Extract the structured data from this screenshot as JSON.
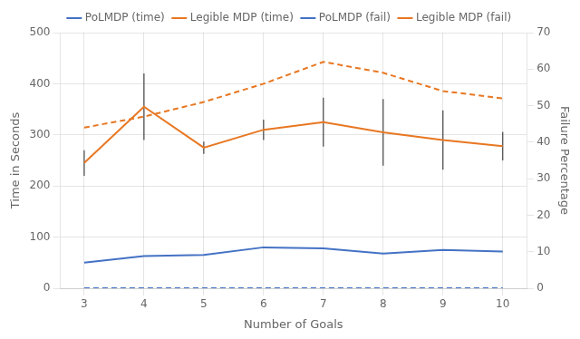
{
  "chart_data": {
    "type": "line",
    "xlabel": "Number of Goals",
    "ylabel": "Time in Seconds",
    "y2label": "Failure Percentage",
    "x": [
      3,
      4,
      5,
      6,
      7,
      8,
      9,
      10
    ],
    "xlim": [
      2.6,
      10.4
    ],
    "xticks": [
      3,
      4,
      5,
      6,
      7,
      8,
      9,
      10
    ],
    "ylim": [
      0,
      500
    ],
    "yticks": [
      0,
      100,
      200,
      300,
      400,
      500
    ],
    "y2lim": [
      0,
      70
    ],
    "y2ticks": [
      0,
      10,
      20,
      30,
      40,
      50,
      60,
      70
    ],
    "grid": true,
    "legend": "top",
    "series": [
      {
        "name": "PoLMDP (time)",
        "color": "#4472C4",
        "line_style": "solid",
        "values": [
          50,
          63,
          65,
          80,
          78,
          68,
          75,
          72
        ]
      },
      {
        "name": "Legible MDP (time)",
        "color": "#E87722",
        "line_style": "solid",
        "values": [
          245,
          355,
          275,
          310,
          325,
          305,
          290,
          278
        ],
        "error_low": [
          25,
          65,
          12,
          20,
          48,
          65,
          58,
          28
        ],
        "error_high": [
          25,
          65,
          12,
          20,
          48,
          65,
          58,
          28
        ]
      },
      {
        "name": "PoLMDP (fail)",
        "color": "#4472C4",
        "line_style": "dashed",
        "axis": "y2",
        "values": [
          0,
          0,
          0,
          0,
          0,
          0,
          0,
          0
        ]
      },
      {
        "name": "Legible MDP (fail)",
        "color": "#E87722",
        "line_style": "dashed",
        "axis": "y2",
        "values": [
          44,
          47,
          51,
          56,
          62,
          59,
          54,
          52
        ]
      }
    ]
  }
}
